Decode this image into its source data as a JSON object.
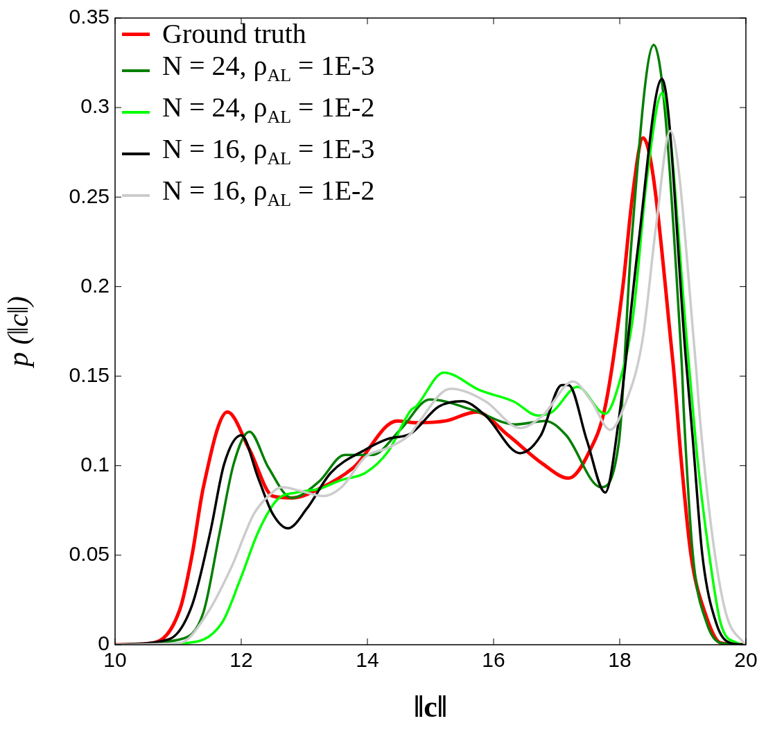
{
  "chart_data": {
    "type": "line",
    "xlabel": "‖c‖",
    "ylabel": "p (‖c‖)",
    "xlim": [
      10,
      20
    ],
    "xticks": [
      10,
      12,
      14,
      16,
      18,
      20
    ],
    "ylim": [
      0,
      0.35
    ],
    "yticks": [
      0,
      0.05,
      0.1,
      0.15,
      0.2,
      0.25,
      0.3,
      0.35
    ],
    "grid": false,
    "legend": "top left",
    "marker": "none",
    "line_style": "solid",
    "series": [
      {
        "name": "Ground truth",
        "color": "#ff0000",
        "x": [
          10,
          10.6,
          11.03,
          11.22,
          11.4,
          11.78,
          12.13,
          12.5,
          12.8,
          13.23,
          13.78,
          14.47,
          14.77,
          15.24,
          15.73,
          16.23,
          16.78,
          17.19,
          17.52,
          17.77,
          18.05,
          18.2,
          18.37,
          18.84,
          18.98,
          19.13,
          19.35,
          19.6,
          20
        ],
        "values": [
          0,
          0.001,
          0.02,
          0.05,
          0.088,
          0.13,
          0.109,
          0.083,
          0.082,
          0.087,
          0.099,
          0.125,
          0.124,
          0.125,
          0.13,
          0.117,
          0.101,
          0.093,
          0.108,
          0.133,
          0.2,
          0.25,
          0.283,
          0.159,
          0.101,
          0.05,
          0.018,
          0.001,
          0
        ]
      },
      {
        "name": "N = 24, ρ$_{AL}$ = 1E-3",
        "color": "#007f00",
        "x": [
          10,
          11.03,
          11.4,
          11.66,
          11.88,
          12.13,
          12.43,
          12.8,
          13.23,
          13.64,
          14.08,
          14.52,
          14.99,
          15.68,
          16.34,
          16.82,
          17.15,
          17.7,
          17.99,
          18.18,
          18.54,
          18.98,
          19.02,
          19.16,
          19.38,
          19.6,
          20
        ],
        "values": [
          0,
          0.003,
          0.018,
          0.063,
          0.101,
          0.119,
          0.099,
          0.082,
          0.091,
          0.106,
          0.106,
          0.12,
          0.137,
          0.131,
          0.123,
          0.125,
          0.117,
          0.088,
          0.114,
          0.222,
          0.335,
          0.159,
          0.127,
          0.05,
          0.012,
          0.001,
          0
        ]
      },
      {
        "name": "N = 24, ρ$_{AL}$ = 1E-2",
        "color": "#00ff00",
        "x": [
          10,
          11.14,
          11.69,
          11.99,
          12.27,
          12.57,
          12.87,
          13.23,
          13.59,
          13.97,
          14.33,
          14.69,
          14.77,
          15.21,
          15.79,
          16.31,
          16.71,
          16.93,
          17.33,
          17.77,
          17.99,
          18.21,
          18.43,
          18.67,
          19.09,
          19.24,
          19.42,
          19.6,
          19.86,
          20
        ],
        "values": [
          0,
          0.001,
          0.012,
          0.037,
          0.063,
          0.081,
          0.085,
          0.087,
          0.092,
          0.096,
          0.108,
          0.131,
          0.133,
          0.152,
          0.142,
          0.136,
          0.128,
          0.13,
          0.144,
          0.129,
          0.146,
          0.183,
          0.26,
          0.308,
          0.159,
          0.101,
          0.05,
          0.012,
          0.001,
          0
        ]
      },
      {
        "name": "N = 16, ρ$_{AL}$ = 1E-3",
        "color": "#000000",
        "x": [
          10,
          10.85,
          11.22,
          11.51,
          11.73,
          12,
          12.27,
          12.5,
          12.74,
          13.04,
          13.42,
          13.97,
          14.33,
          14.69,
          15.13,
          15.5,
          15.87,
          16.42,
          16.75,
          17.08,
          17.19,
          17.48,
          17.77,
          17.99,
          18.29,
          18.67,
          19.05,
          19.16,
          19.31,
          19.53,
          19.75,
          20
        ],
        "values": [
          0,
          0.003,
          0.022,
          0.063,
          0.101,
          0.117,
          0.093,
          0.073,
          0.065,
          0.076,
          0.096,
          0.109,
          0.115,
          0.118,
          0.133,
          0.136,
          0.128,
          0.107,
          0.117,
          0.145,
          0.145,
          0.114,
          0.085,
          0.127,
          0.222,
          0.316,
          0.159,
          0.114,
          0.05,
          0.012,
          0.001,
          0
        ]
      },
      {
        "name": "N = 16, ρ$_{AL}$ = 1E-2",
        "color": "#cccccc",
        "x": [
          10,
          11.03,
          11.47,
          11.84,
          12.2,
          12.43,
          12.65,
          12.93,
          13.3,
          13.59,
          13.97,
          14.33,
          14.69,
          14.77,
          15.32,
          15.87,
          16.42,
          16.78,
          17.26,
          17.55,
          17.85,
          18.07,
          18.36,
          18.58,
          18.8,
          19.2,
          19.27,
          19.46,
          19.68,
          19.97,
          20
        ],
        "values": [
          0,
          0.001,
          0.018,
          0.043,
          0.073,
          0.083,
          0.088,
          0.086,
          0.083,
          0.088,
          0.105,
          0.11,
          0.118,
          0.122,
          0.143,
          0.136,
          0.121,
          0.128,
          0.147,
          0.136,
          0.12,
          0.133,
          0.17,
          0.235,
          0.287,
          0.159,
          0.127,
          0.063,
          0.018,
          0.001,
          0
        ]
      }
    ]
  }
}
